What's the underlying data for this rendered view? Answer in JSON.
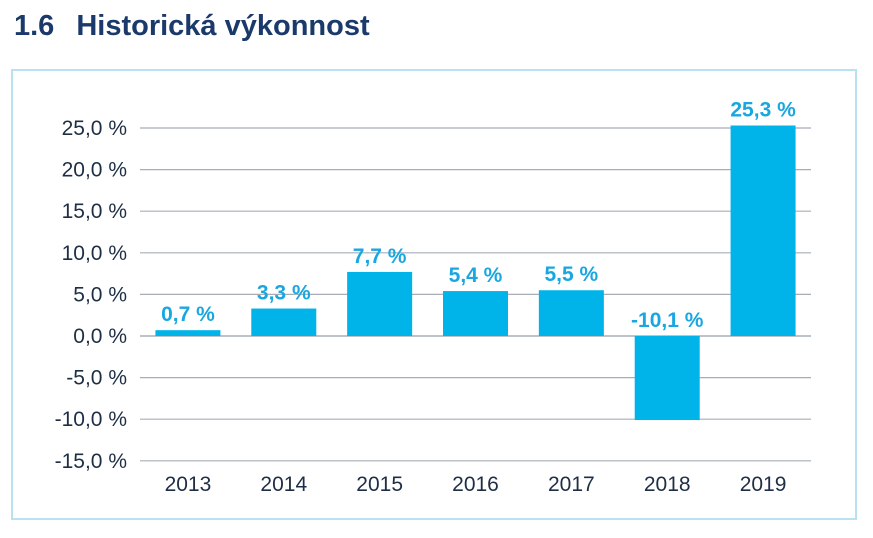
{
  "heading": {
    "number": "1.6",
    "title": "Historická výkonnost"
  },
  "chart_data": {
    "type": "bar",
    "title": "",
    "xlabel": "",
    "ylabel": "",
    "categories": [
      "2013",
      "2014",
      "2015",
      "2016",
      "2017",
      "2018",
      "2019"
    ],
    "values": [
      0.7,
      3.3,
      7.7,
      5.4,
      5.5,
      -10.1,
      25.3
    ],
    "data_labels": [
      "0,7 %",
      "3,3 %",
      "7,7 %",
      "5,4 %",
      "5,5 %",
      "-10,1 %",
      "25,3 %"
    ],
    "ylim": [
      -15,
      25
    ],
    "yticks": [
      25,
      20,
      15,
      10,
      5,
      0,
      -5,
      -10,
      -15
    ],
    "ytick_labels": [
      "25,0 %",
      "20,0 %",
      "15,0 %",
      "10,0 %",
      "5,0 %",
      "0,0 %",
      "-5,0 %",
      "-10,0 %",
      "-15,0 %"
    ],
    "grid": true,
    "legend": "none",
    "bar_color": "#00b4ea",
    "label_color": "#1aa7e0",
    "grid_color": "#a8adb8",
    "heading_color": "#1b3a6b"
  }
}
